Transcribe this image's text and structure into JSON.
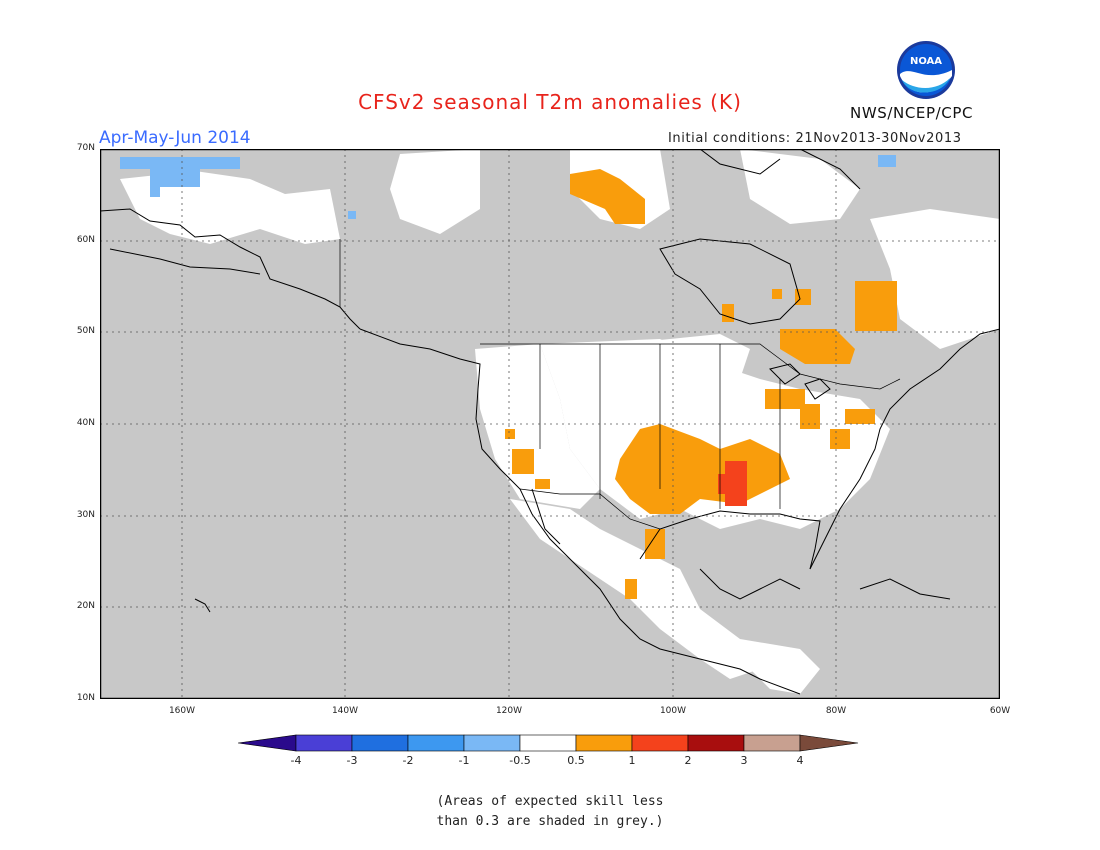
{
  "title": "CFSv2 seasonal T2m anomalies (K)",
  "period": "Apr-May-Jun 2014",
  "initial_conditions": "Initial conditions: 21Nov2013-30Nov2013",
  "agency": "NWS/NCEP/CPC",
  "logo_text": "NOAA",
  "lat_labels": [
    "70N",
    "60N",
    "50N",
    "40N",
    "30N",
    "20N",
    "10N"
  ],
  "lon_labels": [
    "160W",
    "140W",
    "120W",
    "100W",
    "80W",
    "60W"
  ],
  "map": {
    "lon_range": [
      -170,
      -60
    ],
    "lat_range": [
      10,
      70
    ],
    "grey_color": "#c8c8c8",
    "land_color": "#ffffff",
    "coast_color": "#000000"
  },
  "colorbar": {
    "levels": [
      "-4",
      "-3",
      "-2",
      "-1",
      "-0.5",
      "0.5",
      "1",
      "2",
      "3",
      "4"
    ],
    "colors": [
      "#2a0a8c",
      "#4a3fd6",
      "#1f6fe0",
      "#3d98f0",
      "#7ab8f5",
      "#ffffff",
      "#f99d0c",
      "#f4421c",
      "#a80e0e",
      "#c8a090",
      "#7a4a3a"
    ]
  },
  "note": [
    "(Areas of expected skill less",
    "than 0.3 are shaded in grey.)"
  ]
}
